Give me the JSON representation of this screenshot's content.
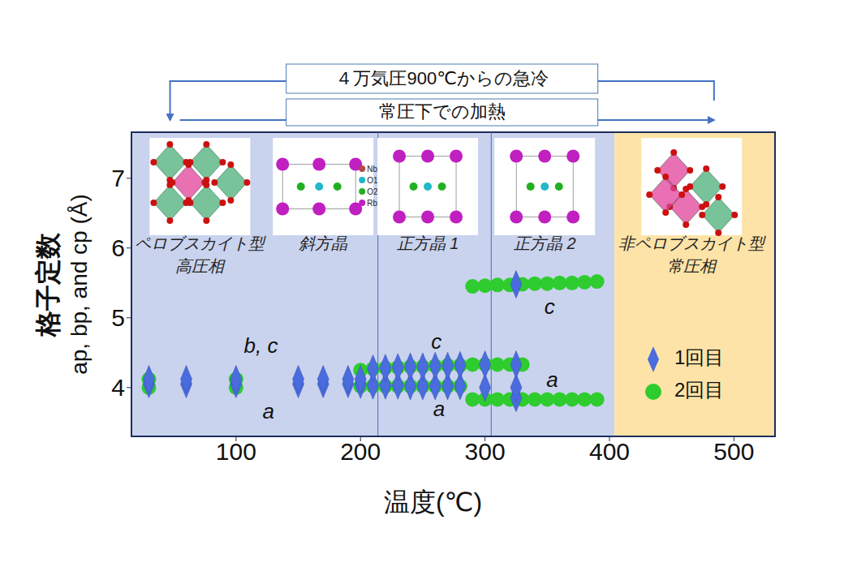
{
  "chart_data": {
    "type": "scatter",
    "xlabel": "温度(℃)",
    "ylabel": [
      "格子定数",
      "ap, bp, and cp (Å)"
    ],
    "xlim": [
      16,
      533
    ],
    "xticks": [
      100,
      200,
      300,
      400,
      500
    ],
    "ylim": [
      3.3,
      7.66
    ],
    "yticks": [
      4,
      5,
      6,
      7
    ],
    "grid": false,
    "legend": "lower right",
    "series": [
      {
        "name": "1回目",
        "color": "#4a6cde",
        "marker": "diamond",
        "x": [
          30,
          30,
          60,
          60,
          100,
          100,
          150,
          150,
          170,
          170,
          190,
          190,
          200,
          200,
          210,
          210,
          220,
          220,
          230,
          230,
          240,
          240,
          250,
          250,
          260,
          260,
          270,
          270,
          280,
          280,
          300,
          300,
          325,
          325,
          325,
          325
        ],
        "values": [
          4.05,
          4.12,
          4.05,
          4.12,
          4.05,
          4.12,
          4.05,
          4.12,
          4.05,
          4.12,
          4.05,
          4.12,
          4.04,
          4.12,
          4.03,
          4.27,
          4.03,
          4.28,
          4.03,
          4.29,
          4.02,
          4.3,
          4.02,
          4.3,
          4.02,
          4.31,
          4.02,
          4.31,
          4.02,
          4.32,
          4.0,
          4.33,
          3.85,
          4.0,
          4.33,
          5.48
        ]
      },
      {
        "name": "2回目",
        "color": "#2ecc2e",
        "marker": "circle",
        "x": [
          30,
          30,
          100,
          100,
          200,
          200,
          210,
          210,
          220,
          220,
          230,
          230,
          240,
          240,
          250,
          250,
          260,
          260,
          270,
          270,
          280,
          280,
          290,
          300,
          310,
          320,
          330,
          290,
          290,
          300,
          300,
          310,
          310,
          320,
          320,
          330,
          330,
          340,
          340,
          350,
          350,
          360,
          360,
          370,
          370,
          380,
          380,
          390,
          390
        ],
        "values": [
          4.0,
          4.12,
          4.0,
          4.12,
          4.02,
          4.25,
          4.02,
          4.27,
          4.02,
          4.28,
          4.02,
          4.29,
          4.02,
          4.3,
          4.02,
          4.3,
          4.02,
          4.31,
          4.02,
          4.32,
          4.02,
          4.32,
          4.33,
          4.33,
          4.33,
          4.33,
          4.33,
          3.83,
          5.45,
          3.83,
          5.46,
          3.83,
          5.47,
          3.83,
          5.47,
          3.83,
          5.48,
          3.83,
          5.49,
          3.83,
          5.49,
          3.83,
          5.5,
          3.83,
          5.5,
          3.83,
          5.51,
          3.83,
          5.52
        ]
      }
    ],
    "regions": [
      {
        "x": [
          16,
          404
        ],
        "color": "#c9d3ee"
      },
      {
        "x": [
          404,
          533
        ],
        "color": "#fde3a7"
      }
    ],
    "dividers": [
      214,
      305
    ],
    "phases": [
      {
        "label": [
          "ペロブスカイト型",
          "高圧相"
        ],
        "x": 71,
        "y": 6.05
      },
      {
        "label": [
          "斜方晶"
        ],
        "x": 170,
        "y": 6.05
      },
      {
        "label": [
          "正方晶 1"
        ],
        "x": 254,
        "y": 6.05
      },
      {
        "label": [
          "正方晶 2"
        ],
        "x": 348,
        "y": 6.05
      },
      {
        "label": [
          "非ペロブスカイト型",
          "常圧相"
        ],
        "x": 466,
        "y": 6.05
      }
    ],
    "structure_legend": [
      {
        "label": "Nb",
        "color": "#b04a4a"
      },
      {
        "label": "O1",
        "color": "#22b8c8"
      },
      {
        "label": "O2",
        "color": "#22b022"
      },
      {
        "label": "Rb",
        "color": "#c020c0"
      }
    ],
    "annotations": [
      {
        "text": "b, c",
        "x": 120,
        "y": 4.58
      },
      {
        "text": "a",
        "x": 126,
        "y": 3.63
      },
      {
        "text": "c",
        "x": 261,
        "y": 4.64
      },
      {
        "text": "a",
        "x": 263,
        "y": 3.67
      },
      {
        "text": "c",
        "x": 352,
        "y": 5.13
      },
      {
        "text": "a",
        "x": 354,
        "y": 4.09
      }
    ],
    "arrows": [
      {
        "text": "４万気圧900℃からの急冷",
        "from": 484,
        "to": 47
      },
      {
        "text": "常圧下での加熱",
        "from": 47,
        "to": 484
      }
    ]
  }
}
